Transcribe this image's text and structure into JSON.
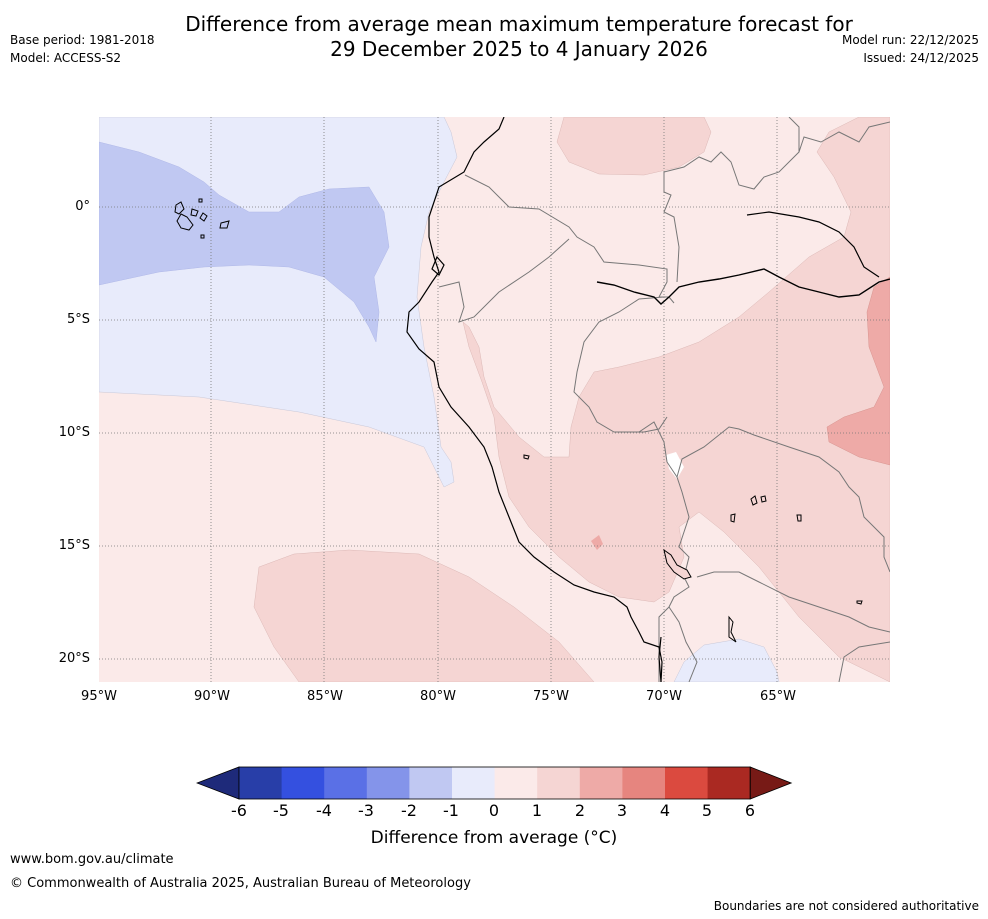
{
  "title": {
    "line1": "Difference from average mean maximum temperature forecast for",
    "line2": "29 December 2025 to 4 January 2026"
  },
  "meta_left": {
    "base_period": "Base period: 1981-2018",
    "model": "Model: ACCESS-S2"
  },
  "meta_right": {
    "model_run": "Model run: 22/12/2025",
    "issued": "Issued: 24/12/2025"
  },
  "map": {
    "y_ticks": [
      "0°",
      "5°S",
      "10°S",
      "15°S",
      "20°S"
    ],
    "x_ticks": [
      "95°W",
      "90°W",
      "85°W",
      "80°W",
      "75°W",
      "70°W",
      "65°W"
    ]
  },
  "colorbar": {
    "ticks": [
      "-6",
      "-5",
      "-4",
      "-3",
      "-2",
      "-1",
      "0",
      "1",
      "2",
      "3",
      "4",
      "5",
      "6"
    ],
    "label": "Difference from average (°C)",
    "colors": [
      "#1e2a7a",
      "#283ea8",
      "#3450e0",
      "#5a70e6",
      "#8494ea",
      "#c0c8f2",
      "#e8ebfb",
      "#fbeae9",
      "#f5d5d3",
      "#eeaaa7",
      "#e6857f",
      "#db4a3f",
      "#aa2922",
      "#771a16"
    ]
  },
  "footer": {
    "website": "www.bom.gov.au/climate",
    "copyright": "© Commonwealth of Australia 2025, Australian Bureau of Meteorology",
    "disclaimer": "Boundaries are not considered authoritative"
  }
}
